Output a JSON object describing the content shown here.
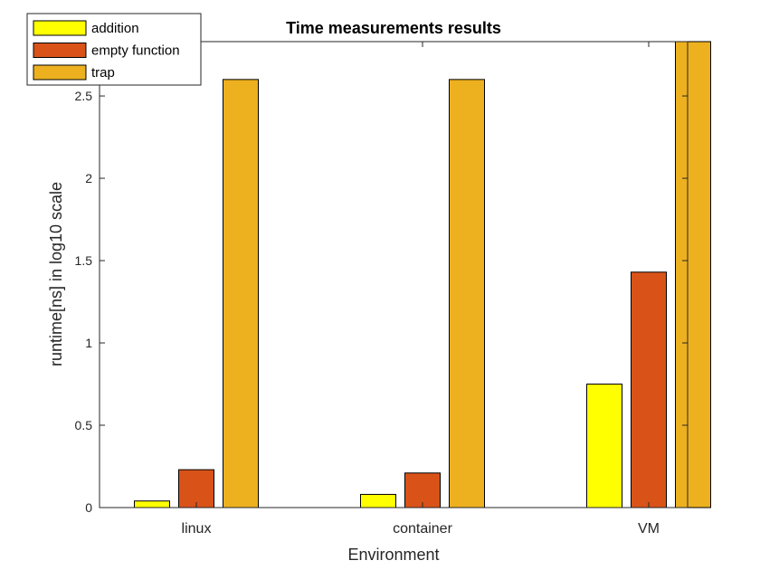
{
  "chart_data": {
    "type": "bar",
    "title": "Time measurements results",
    "xlabel": "Environment",
    "ylabel": "runtime[ns] in log10 scale",
    "categories": [
      "linux",
      "container",
      "VM"
    ],
    "series": [
      {
        "name": "addition",
        "color": "#FFFF00",
        "values": [
          0.04,
          0.08,
          0.75
        ]
      },
      {
        "name": "empty function",
        "color": "#D95319",
        "values": [
          0.23,
          0.21,
          1.43
        ]
      },
      {
        "name": "trap",
        "color": "#EDB120",
        "values": [
          2.6,
          2.6,
          2.83
        ]
      }
    ],
    "ylim": [
      0,
      2.83
    ],
    "yticks": [
      0,
      0.5,
      1,
      1.5,
      2,
      2.5
    ],
    "ytick_labels": [
      "0",
      "0.5",
      "1",
      "1.5",
      "2",
      "2.5"
    ],
    "grid": false,
    "legend_position": "top-left"
  }
}
